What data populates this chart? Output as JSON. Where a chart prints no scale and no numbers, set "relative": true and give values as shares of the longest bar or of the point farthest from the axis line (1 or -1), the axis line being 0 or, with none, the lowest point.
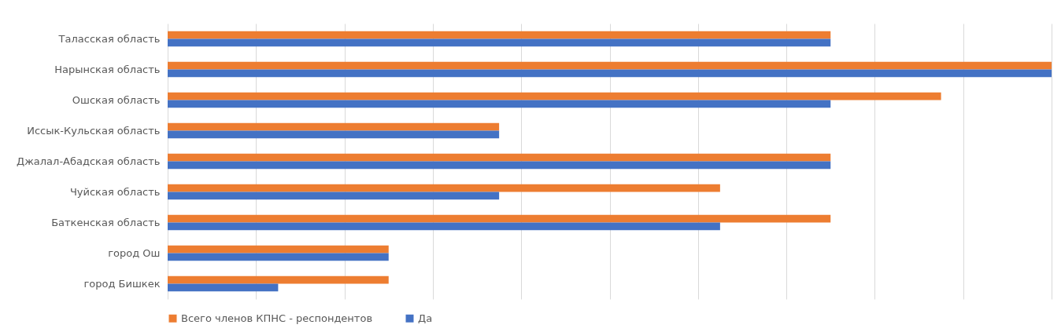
{
  "chart_data": {
    "type": "bar",
    "orientation": "horizontal",
    "relative": true,
    "grid": "x",
    "legend": "bottom",
    "categories": [
      "Таласская область",
      "Нарынская область",
      "Ошская область",
      "Иссык-Кульская область",
      "Джалал-Абадская область",
      "Чуйская область",
      "Баткенская область",
      "город Ош",
      "город Бишкек"
    ],
    "series": [
      {
        "name": "Всего членов КПНС - респондентов",
        "color": "#ed7d31",
        "values": [
          0.75,
          1,
          0.875,
          0.375,
          0.75,
          0.625,
          0.75,
          0.25,
          0.25
        ]
      },
      {
        "name": "Да",
        "color": "#4472c4",
        "values": [
          0.75,
          1,
          0.75,
          0.375,
          0.75,
          0.375,
          0.625,
          0.25,
          0.125
        ]
      }
    ]
  }
}
